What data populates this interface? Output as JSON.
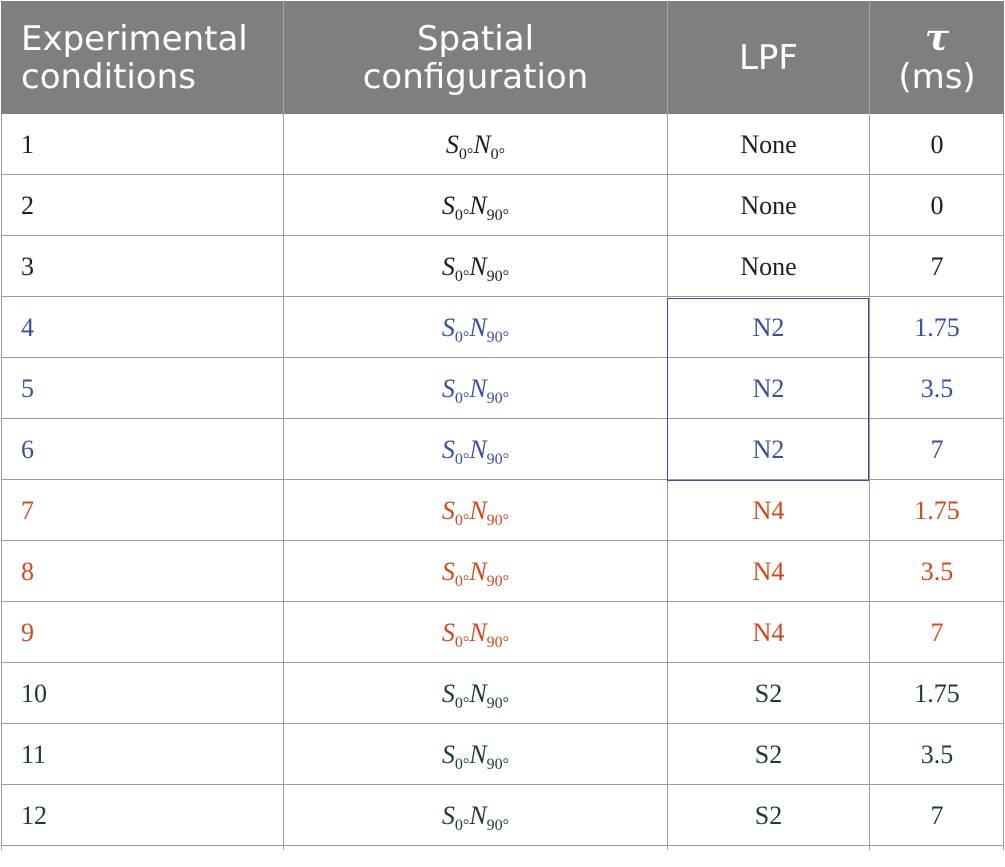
{
  "header": {
    "col1": [
      "Experimental",
      "conditions"
    ],
    "col2": [
      "Spatial",
      "configuration"
    ],
    "col3": "LPF",
    "col4_symbol": "τ",
    "col4_unit": "(ms)"
  },
  "colors": {
    "header_bg": "#7f7f7e",
    "black": "#1e1e1e",
    "blue": "#3d4f9c",
    "red": "#d04a1e",
    "green": "#1f3d2c"
  },
  "rows": [
    {
      "cond": "1",
      "s_sub": "0°",
      "n_sub": "0°",
      "lpf": "None",
      "tau": "0",
      "color": "black"
    },
    {
      "cond": "2",
      "s_sub": "0°",
      "n_sub": "90°",
      "lpf": "None",
      "tau": "0",
      "color": "black"
    },
    {
      "cond": "3",
      "s_sub": "0°",
      "n_sub": "90°",
      "lpf": "None",
      "tau": "7",
      "color": "black"
    },
    {
      "cond": "4",
      "s_sub": "0°",
      "n_sub": "90°",
      "lpf": "N2",
      "tau": "1.75",
      "color": "blue"
    },
    {
      "cond": "5",
      "s_sub": "0°",
      "n_sub": "90°",
      "lpf": "N2",
      "tau": "3.5",
      "color": "blue"
    },
    {
      "cond": "6",
      "s_sub": "0°",
      "n_sub": "90°",
      "lpf": "N2",
      "tau": "7",
      "color": "blue"
    },
    {
      "cond": "7",
      "s_sub": "0°",
      "n_sub": "90°",
      "lpf": "N4",
      "tau": "1.75",
      "color": "red"
    },
    {
      "cond": "8",
      "s_sub": "0°",
      "n_sub": "90°",
      "lpf": "N4",
      "tau": "3.5",
      "color": "red"
    },
    {
      "cond": "9",
      "s_sub": "0°",
      "n_sub": "90°",
      "lpf": "N4",
      "tau": "7",
      "color": "red"
    },
    {
      "cond": "10",
      "s_sub": "0°",
      "n_sub": "90°",
      "lpf": "S2",
      "tau": "1.75",
      "color": "green"
    },
    {
      "cond": "11",
      "s_sub": "0°",
      "n_sub": "90°",
      "lpf": "S2",
      "tau": "3.5",
      "color": "green"
    },
    {
      "cond": "12",
      "s_sub": "0°",
      "n_sub": "90°",
      "lpf": "S2",
      "tau": "7",
      "color": "green"
    }
  ]
}
